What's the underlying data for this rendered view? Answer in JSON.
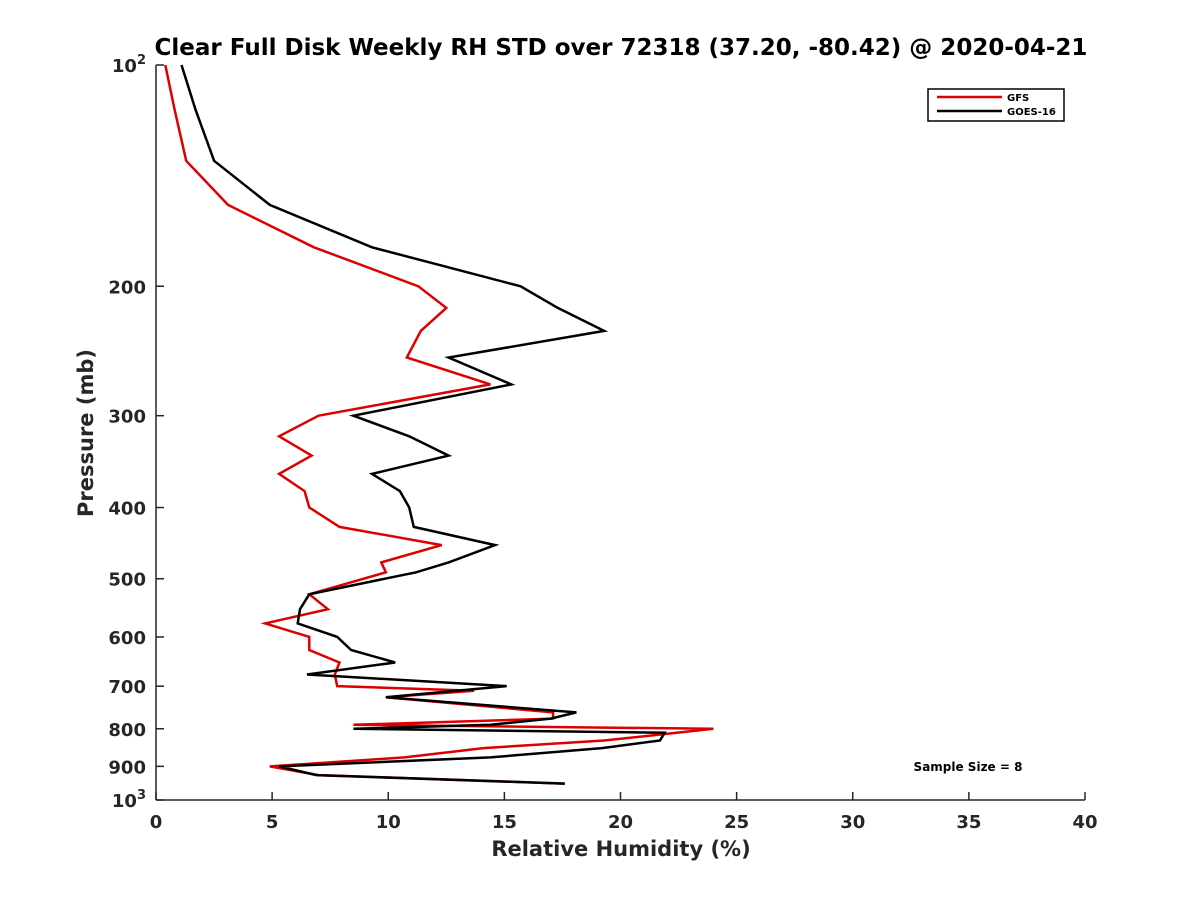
{
  "colors": {
    "GFS": "#dd0000",
    "GOES-16": "#000000",
    "axis": "#262626"
  },
  "chart_data": {
    "type": "line",
    "title": "Clear Full Disk Weekly RH STD over 72318 (37.20, -80.42) @ 2020-04-21",
    "xlabel": "Relative Humidity (%)",
    "ylabel": "Pressure (mb)",
    "xlim": [
      0,
      40
    ],
    "ylim": [
      100,
      1000
    ],
    "y_scale": "log",
    "y_reversed": true,
    "grid": false,
    "legend_placement": "top-right",
    "x_ticks": [
      0,
      5,
      10,
      15,
      20,
      25,
      30,
      35,
      40
    ],
    "x_tick_labels": [
      "0",
      "5",
      "10",
      "15",
      "20",
      "25",
      "30",
      "35",
      "40"
    ],
    "y_ticks": [
      100,
      200,
      300,
      400,
      500,
      600,
      700,
      800,
      900,
      1000
    ],
    "y_tick_labels": [
      {
        "base": "10",
        "exp": "2"
      },
      {
        "base": "200",
        "exp": ""
      },
      {
        "base": "300",
        "exp": ""
      },
      {
        "base": "400",
        "exp": ""
      },
      {
        "base": "500",
        "exp": ""
      },
      {
        "base": "600",
        "exp": ""
      },
      {
        "base": "700",
        "exp": ""
      },
      {
        "base": "800",
        "exp": ""
      },
      {
        "base": "900",
        "exp": ""
      },
      {
        "base": "10",
        "exp": "3"
      }
    ],
    "annotation": "Sample Size = 8",
    "series": [
      {
        "name": "GFS",
        "points": [
          [
            0.4,
            100
          ],
          [
            0.8,
            115
          ],
          [
            1.3,
            135
          ],
          [
            3.1,
            155
          ],
          [
            6.8,
            177
          ],
          [
            11.3,
            200
          ],
          [
            12.5,
            214
          ],
          [
            11.4,
            230
          ],
          [
            10.8,
            250
          ],
          [
            14.4,
            272
          ],
          [
            7.0,
            300
          ],
          [
            5.3,
            320
          ],
          [
            6.7,
            340
          ],
          [
            5.3,
            360
          ],
          [
            6.4,
            380
          ],
          [
            6.6,
            400
          ],
          [
            7.9,
            425
          ],
          [
            12.3,
            450
          ],
          [
            9.7,
            475
          ],
          [
            9.9,
            490
          ],
          [
            6.6,
            525
          ],
          [
            7.4,
            550
          ],
          [
            4.7,
            575
          ],
          [
            6.6,
            600
          ],
          [
            6.6,
            625
          ],
          [
            7.9,
            650
          ],
          [
            7.7,
            675
          ],
          [
            7.8,
            700
          ],
          [
            13.7,
            710
          ],
          [
            9.9,
            725
          ],
          [
            17.1,
            760
          ],
          [
            17.1,
            775
          ],
          [
            8.5,
            790
          ],
          [
            24.0,
            800
          ],
          [
            19.3,
            830
          ],
          [
            14.1,
            850
          ],
          [
            10.7,
            875
          ],
          [
            4.9,
            900
          ],
          [
            7.0,
            925
          ],
          [
            17.6,
            950
          ]
        ]
      },
      {
        "name": "GOES-16",
        "points": [
          [
            1.1,
            100
          ],
          [
            1.7,
            115
          ],
          [
            2.5,
            135
          ],
          [
            4.9,
            155
          ],
          [
            9.3,
            177
          ],
          [
            15.7,
            200
          ],
          [
            17.3,
            214
          ],
          [
            19.3,
            230
          ],
          [
            12.6,
            250
          ],
          [
            15.3,
            272
          ],
          [
            8.5,
            300
          ],
          [
            10.9,
            320
          ],
          [
            12.6,
            340
          ],
          [
            9.3,
            360
          ],
          [
            10.5,
            380
          ],
          [
            10.9,
            400
          ],
          [
            11.1,
            425
          ],
          [
            14.6,
            450
          ],
          [
            12.6,
            475
          ],
          [
            11.2,
            490
          ],
          [
            6.6,
            525
          ],
          [
            6.2,
            550
          ],
          [
            6.1,
            575
          ],
          [
            7.8,
            600
          ],
          [
            8.4,
            625
          ],
          [
            10.3,
            650
          ],
          [
            6.5,
            675
          ],
          [
            15.1,
            700
          ],
          [
            9.9,
            725
          ],
          [
            18.1,
            760
          ],
          [
            17.0,
            775
          ],
          [
            14.4,
            790
          ],
          [
            8.5,
            800
          ],
          [
            21.9,
            810
          ],
          [
            21.7,
            830
          ],
          [
            19.2,
            850
          ],
          [
            14.4,
            875
          ],
          [
            5.3,
            900
          ],
          [
            6.9,
            925
          ],
          [
            17.6,
            950
          ]
        ]
      }
    ]
  }
}
